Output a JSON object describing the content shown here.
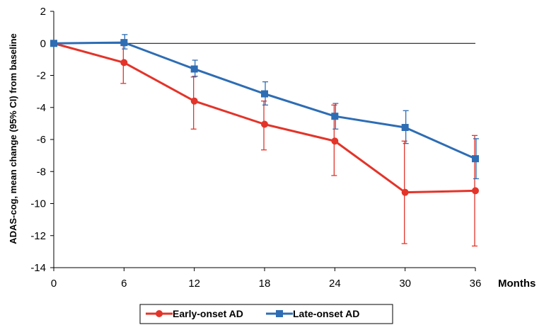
{
  "chart_data": {
    "type": "line",
    "title": "",
    "xlabel": "Months",
    "ylabel": "ADAS-cog, mean change (95% CI) from baseline",
    "x": [
      0,
      6,
      12,
      18,
      24,
      30,
      36
    ],
    "xticks": [
      "0",
      "6",
      "12",
      "18",
      "24",
      "30",
      "36"
    ],
    "yticks": [
      "2",
      "0",
      "-2",
      "-4",
      "-6",
      "-8",
      "-10",
      "-12",
      "-14"
    ],
    "ylim": [
      -14,
      2
    ],
    "xlim": [
      0,
      36
    ],
    "grid": false,
    "legend_position": "bottom",
    "series": [
      {
        "name": "Early-onset AD",
        "color": "#e3342a",
        "marker": "circle",
        "values": [
          0,
          -1.2,
          -3.6,
          -5.05,
          -6.1,
          -9.3,
          -9.2
        ],
        "ci_low": [
          0,
          -2.5,
          -5.35,
          -6.65,
          -8.25,
          -12.5,
          -12.65
        ],
        "ci_high": [
          0,
          0.1,
          -2.1,
          -3.6,
          -3.85,
          -6.1,
          -5.75
        ]
      },
      {
        "name": "Late-onset AD",
        "color": "#2e6db4",
        "marker": "square",
        "values": [
          0,
          0.05,
          -1.6,
          -3.15,
          -4.55,
          -5.25,
          -7.2
        ],
        "ci_low": [
          0,
          -0.35,
          -2.05,
          -3.85,
          -5.35,
          -6.25,
          -8.45
        ],
        "ci_high": [
          0,
          0.55,
          -1.05,
          -2.4,
          -3.75,
          -4.2,
          -5.95
        ]
      }
    ]
  }
}
